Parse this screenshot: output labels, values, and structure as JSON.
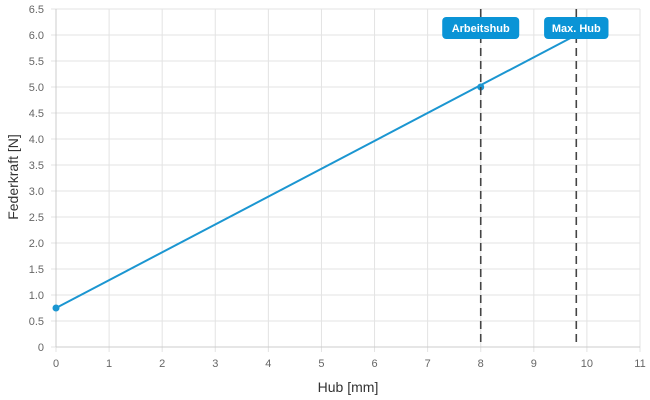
{
  "chart_data": {
    "type": "line",
    "xlabel": "Hub [mm]",
    "ylabel": "Federkraft [N]",
    "xlim": [
      0,
      11
    ],
    "ylim": [
      0,
      6.5
    ],
    "x_ticks": [
      "0",
      "1",
      "2",
      "3",
      "4",
      "5",
      "6",
      "7",
      "8",
      "9",
      "10",
      "11"
    ],
    "y_ticks": [
      "0",
      "0.5",
      "1.0",
      "1.5",
      "2.0",
      "2.5",
      "3.0",
      "3.5",
      "4.0",
      "4.5",
      "5.0",
      "5.5",
      "6.0",
      "6.5"
    ],
    "grid": true,
    "series": [
      {
        "x": [
          0,
          9.8
        ],
        "y": [
          0.75,
          6.0
        ],
        "color": "#1b96d1"
      }
    ],
    "markers": [
      {
        "x": 0,
        "y": 0.75
      },
      {
        "x": 8,
        "y": 5.0
      }
    ],
    "reference_lines": [
      {
        "x": 8,
        "label": "Arbeitshub"
      },
      {
        "x": 9.8,
        "label": "Max. Hub"
      }
    ],
    "colors": {
      "line": "#1b96d1",
      "callout": "#0a94d6",
      "reference": "#444444",
      "grid": "#e3e3e3"
    }
  }
}
